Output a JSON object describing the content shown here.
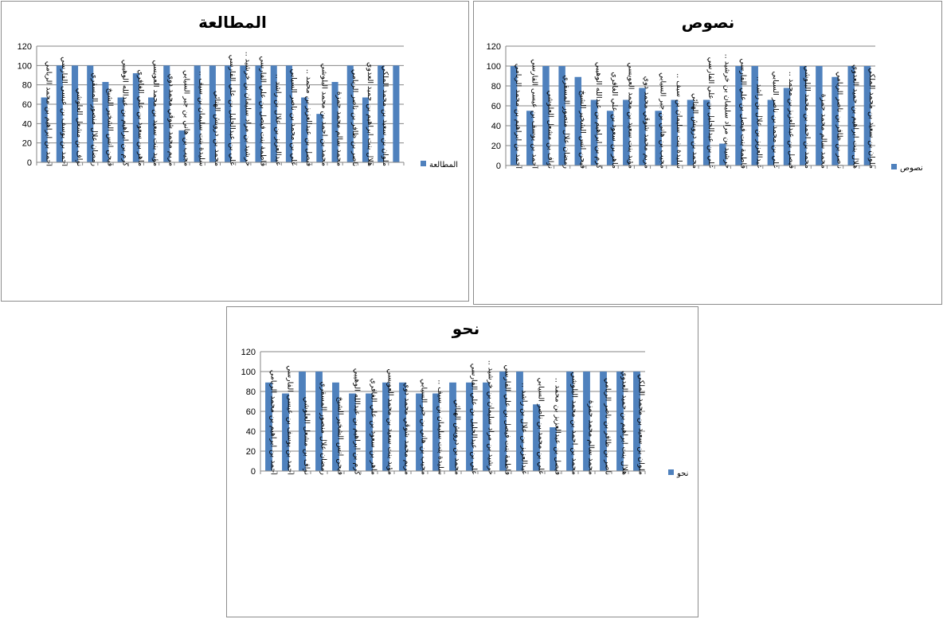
{
  "chart_data": [
    {
      "type": "bar",
      "title": "المطالعة",
      "ylim": [
        0,
        120
      ],
      "yticks": [
        "0",
        "20",
        "40",
        "60",
        "80",
        "100",
        "120"
      ],
      "grid": true,
      "legend": "right",
      "series": [
        {
          "name": "المطالعة",
          "color": "#4f81bd",
          "values": [
            67,
            100,
            100,
            100,
            83,
            67,
            92,
            67,
            100,
            33,
            100,
            100,
            100,
            100,
            100,
            100,
            100,
            67,
            50,
            83,
            100,
            67,
            100,
            100
          ]
        }
      ],
      "categories": [
        "احمد بن ابراهيم بن محمد الريامي",
        "احمد بن يوسف بن عيسى الفارسي",
        "نواف بن مشعل العلوشي",
        "رمضان علال منصور المسقري",
        "فيحن انس الشخير الشيخ",
        "كرم بن ابراهيم بن عبدالله الوهيبي",
        "ماهر بن سعود بن علي الغافري",
        "مؤيد بنت سعيد بن محمد العويسي",
        "مريم محمد شوقي محمد دوي",
        "مجيب بن هاني بن جبر السيابي",
        "سليدة بنت سليمان بن سيف ..",
        "محمد بن درويش الهنائي",
        "علي بن عبدالجليل بن علي الفارسي",
        "خرشيد بن مراد سليمان بن خرشيد ..",
        "فاطمة بنت فيصل بن علي الفارسي",
        "عبدالعزيز بن علال بن راشد ..",
        "علي بن محمد بن ناصر السيابي",
        "فيصل بن عبدالعزيز بن محمد ..",
        "محمد بن احمد بن محمد البلوشي",
        "محمد سالم محمد حمزة",
        "ناصر بن ظافر بن ناصر الريامي",
        "هلال بنت ابراهيم بن حميد العدوي",
        "ملوان بن سعيد بن محمد الملكي",
        ""
      ]
    },
    {
      "type": "bar",
      "title": "نصوص",
      "ylim": [
        0,
        120
      ],
      "yticks": [
        "0",
        "20",
        "40",
        "60",
        "80",
        "100",
        "120"
      ],
      "grid": true,
      "legend": "right",
      "series": [
        {
          "name": "نصوص",
          "color": "#4f81bd",
          "values": [
            100,
            55,
            100,
            100,
            89,
            66,
            55,
            66,
            78,
            55,
            66,
            66,
            66,
            22,
            100,
            100,
            66,
            78,
            100,
            100,
            89,
            100,
            100
          ]
        }
      ],
      "categories": [
        "احمد بن ابراهيم بن محمد الريامي",
        "احمد بن يوسف بن عيسى الفارسي",
        "نواف بن مشعل العلوشي",
        "رمضان علال منصور المسقري",
        "فيحن انس الشخير الشيخ",
        "كرم بن ابراهيم بن عبدالله الوهيبي",
        "ماهر بن سعود بن علي الغافري",
        "مؤيد بنت سعيد بن محمد العويسي",
        "مريم محمد شوقي محمد دوي",
        "مجيب بن هاني بن جبر السيابي",
        "سليدة بنت سليمان بن سيف ..",
        "محمد بن درويش الهنائي",
        "علي بن عبدالجليل بن علي الفارسي",
        "خرشيد بن مراد سليمان بن خرشيد ..",
        "فاطمة بنت فيصل بن علي الفارسي",
        "عبدالعزيز بن علال بن راشد ..",
        "علي بن محمد بن ناصر السيابي",
        "فيصل بن عبدالعزيز بن محمد ..",
        "محمد بن احمد بن محمد البلوشي",
        "محمد سالم محمد حمزة",
        "ناصر بن ظافر بن ناصر الريامي",
        "هلال بنت ابراهيم بن حميد العدوي",
        "ملوان بن سعيد بن محمد الملكي"
      ]
    },
    {
      "type": "bar",
      "title": "نحو",
      "ylim": [
        0,
        120
      ],
      "yticks": [
        "0",
        "20",
        "40",
        "60",
        "80",
        "100",
        "120"
      ],
      "grid": true,
      "legend": "right",
      "series": [
        {
          "name": "نحو",
          "color": "#4f81bd",
          "values": [
            89,
            78,
            100,
            100,
            89,
            78,
            78,
            89,
            89,
            78,
            78,
            89,
            89,
            89,
            100,
            100,
            67,
            44,
            100,
            100,
            100,
            100,
            100
          ]
        }
      ],
      "categories": [
        "احمد بن ابراهيم بن محمد الريامي",
        "احمد بن يوسف بن عيسى الفارسي",
        "نواف بن مشعل العلوشي",
        "رمضان علال منصور المسقري",
        "فيحن انس الشخير الشيخ",
        "كرم بن ابراهيم بن عبدالله الوهيبي",
        "ماهر بن سعود بن علي الغافري",
        "مؤيد بنت سعيد بن محمد العويسي",
        "مريم محمد شوقي محمد دوي",
        "مجيب بن هاني بن جبر السيابي",
        "سليدة بنت سليمان بن سيف ..",
        "محمد بن درويش الهنائي",
        "علي بن عبدالجليل بن علي الفارسي",
        "خرشيد بن مراد سليمان بن خرشيد ..",
        "فاطمة بنت فيصل بن علي الفارسي",
        "عبدالعزيز بن علال بن راشد ..",
        "علي بن محمد بن ناصر السيابي",
        "فيصل بن عبدالعزيز بن محمد ..",
        "محمد بن احمد بن محمد البلوشي",
        "محمد سالم محمد حمزة",
        "ناصر بن ظافر بن ناصر الريامي",
        "هلال بنت ابراهيم بن حميد العدوي",
        "ملوان بن سعيد بن محمد الملكي"
      ]
    }
  ]
}
